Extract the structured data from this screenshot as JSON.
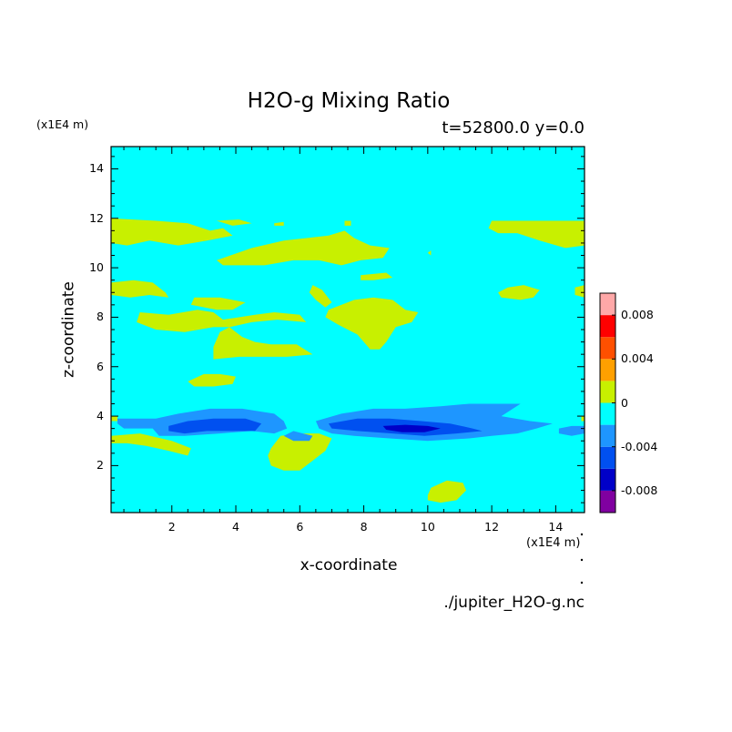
{
  "chart_data": {
    "type": "heatmap",
    "title": "H2O-g Mixing Ratio",
    "subtitle": "t=52800.0 y=0.0",
    "xlabel": "x-coordinate",
    "ylabel": "z-coordinate",
    "x_unit": "(x1E4 m)",
    "z_unit": "(x1E4 m)",
    "xlim": [
      0.1,
      14.9
    ],
    "ylim": [
      0.1,
      14.9
    ],
    "xticks": [
      "2",
      "4",
      "6",
      "8",
      "10",
      "12",
      "14"
    ],
    "xtick_values": [
      2,
      4,
      6,
      8,
      10,
      12,
      14
    ],
    "yticks": [
      "2",
      "4",
      "6",
      "8",
      "10",
      "12",
      "14"
    ],
    "ytick_values": [
      2,
      4,
      6,
      8,
      10,
      12,
      14
    ],
    "background_level_color": "#00ffff",
    "colorbar": {
      "levels": [
        -0.01,
        -0.008,
        -0.006,
        -0.004,
        -0.002,
        0,
        0.002,
        0.004,
        0.006,
        0.008,
        0.01
      ],
      "colors": [
        "#8000a0",
        "#0000c8",
        "#0050f0",
        "#1e96ff",
        "#00ffff",
        "#c8f000",
        "#ffa000",
        "#ff5000",
        "#ff0000",
        "#ffa8a8"
      ],
      "tick_labels": [
        "-0.008",
        "-0.004",
        "0",
        "0.004",
        "0.008"
      ],
      "tick_values": [
        -0.008,
        -0.004,
        0,
        0.004,
        0.008
      ]
    },
    "contours": [
      {
        "level": 0.001,
        "color": "#c8f000",
        "points": [
          [
            0.1,
            12.0
          ],
          [
            1.5,
            11.9
          ],
          [
            2.5,
            11.8
          ],
          [
            3.2,
            11.5
          ],
          [
            3.6,
            11.6
          ],
          [
            3.9,
            11.3
          ],
          [
            3.1,
            11.1
          ],
          [
            2.2,
            10.9
          ],
          [
            1.3,
            11.1
          ],
          [
            0.6,
            10.9
          ],
          [
            0.1,
            11.0
          ]
        ]
      },
      {
        "level": 0.001,
        "color": "#c8f000",
        "points": [
          [
            3.4,
            11.9
          ],
          [
            4.1,
            11.95
          ],
          [
            4.5,
            11.8
          ],
          [
            3.9,
            11.7
          ]
        ]
      },
      {
        "level": 0.001,
        "color": "#c8f000",
        "points": [
          [
            5.2,
            11.8
          ],
          [
            5.5,
            11.85
          ],
          [
            5.5,
            11.7
          ],
          [
            5.2,
            11.7
          ]
        ]
      },
      {
        "level": 0.001,
        "color": "#c8f000",
        "points": [
          [
            7.4,
            11.9
          ],
          [
            7.6,
            11.9
          ],
          [
            7.6,
            11.7
          ],
          [
            7.4,
            11.7
          ]
        ]
      },
      {
        "level": 0.001,
        "color": "#c8f000",
        "points": [
          [
            3.4,
            10.3
          ],
          [
            4.5,
            10.8
          ],
          [
            5.5,
            11.1
          ],
          [
            6.2,
            11.2
          ],
          [
            6.9,
            11.3
          ],
          [
            7.4,
            11.5
          ],
          [
            7.7,
            11.2
          ],
          [
            8.2,
            10.9
          ],
          [
            8.8,
            10.8
          ],
          [
            8.6,
            10.4
          ],
          [
            7.9,
            10.3
          ],
          [
            7.3,
            10.1
          ],
          [
            6.6,
            10.3
          ],
          [
            5.8,
            10.3
          ],
          [
            4.9,
            10.1
          ],
          [
            4.2,
            10.1
          ],
          [
            3.6,
            10.1
          ]
        ]
      },
      {
        "level": 0.001,
        "color": "#c8f000",
        "points": [
          [
            7.9,
            9.7
          ],
          [
            8.7,
            9.8
          ],
          [
            8.9,
            9.6
          ],
          [
            8.3,
            9.5
          ],
          [
            7.9,
            9.5
          ]
        ]
      },
      {
        "level": 0.001,
        "color": "#c8f000",
        "points": [
          [
            12.0,
            11.9
          ],
          [
            12.8,
            11.9
          ],
          [
            13.8,
            11.9
          ],
          [
            14.9,
            11.9
          ],
          [
            14.9,
            10.9
          ],
          [
            14.3,
            10.8
          ],
          [
            13.5,
            11.1
          ],
          [
            12.8,
            11.4
          ],
          [
            12.2,
            11.4
          ],
          [
            11.9,
            11.6
          ]
        ]
      },
      {
        "level": 0.001,
        "color": "#c8f000",
        "points": [
          [
            10.0,
            10.6
          ],
          [
            10.1,
            10.7
          ],
          [
            10.1,
            10.5
          ]
        ]
      },
      {
        "level": 0.001,
        "color": "#c8f000",
        "points": [
          [
            0.1,
            9.4
          ],
          [
            0.8,
            9.5
          ],
          [
            1.4,
            9.4
          ],
          [
            1.8,
            9.0
          ],
          [
            1.9,
            8.8
          ],
          [
            1.3,
            8.9
          ],
          [
            0.7,
            8.8
          ],
          [
            0.1,
            8.9
          ]
        ]
      },
      {
        "level": 0.001,
        "color": "#c8f000",
        "points": [
          [
            12.5,
            9.2
          ],
          [
            13.0,
            9.3
          ],
          [
            13.5,
            9.1
          ],
          [
            13.3,
            8.8
          ],
          [
            12.9,
            8.7
          ],
          [
            12.3,
            8.8
          ],
          [
            12.2,
            9.0
          ]
        ]
      },
      {
        "level": 0.001,
        "color": "#c8f000",
        "points": [
          [
            14.6,
            9.2
          ],
          [
            14.9,
            9.3
          ],
          [
            14.9,
            8.8
          ],
          [
            14.6,
            8.9
          ]
        ]
      },
      {
        "level": 0.001,
        "color": "#c8f000",
        "points": [
          [
            1.0,
            8.2
          ],
          [
            1.9,
            8.1
          ],
          [
            2.8,
            8.3
          ],
          [
            3.3,
            8.2
          ],
          [
            3.6,
            7.9
          ],
          [
            4.6,
            8.1
          ],
          [
            5.2,
            8.2
          ],
          [
            6.0,
            8.1
          ],
          [
            6.2,
            7.8
          ],
          [
            5.3,
            7.9
          ],
          [
            4.5,
            7.8
          ],
          [
            3.8,
            7.6
          ],
          [
            3.3,
            7.6
          ],
          [
            2.4,
            7.4
          ],
          [
            1.5,
            7.5
          ],
          [
            0.9,
            7.8
          ]
        ]
      },
      {
        "level": 0.001,
        "color": "#c8f000",
        "points": [
          [
            2.7,
            8.8
          ],
          [
            3.5,
            8.8
          ],
          [
            4.3,
            8.6
          ],
          [
            3.9,
            8.3
          ],
          [
            3.4,
            8.3
          ],
          [
            2.6,
            8.5
          ]
        ]
      },
      {
        "level": 0.001,
        "color": "#c8f000",
        "points": [
          [
            6.4,
            9.3
          ],
          [
            6.7,
            9.1
          ],
          [
            7.0,
            8.6
          ],
          [
            6.8,
            8.4
          ],
          [
            6.5,
            8.7
          ],
          [
            6.3,
            9.0
          ]
        ]
      },
      {
        "level": 0.001,
        "color": "#c8f000",
        "points": [
          [
            6.9,
            8.3
          ],
          [
            7.7,
            8.7
          ],
          [
            8.3,
            8.8
          ],
          [
            8.9,
            8.7
          ],
          [
            9.3,
            8.3
          ],
          [
            9.7,
            8.2
          ],
          [
            9.5,
            7.8
          ],
          [
            9.0,
            7.6
          ],
          [
            8.7,
            7.0
          ],
          [
            8.5,
            6.7
          ],
          [
            8.2,
            6.7
          ],
          [
            7.8,
            7.3
          ],
          [
            7.2,
            7.7
          ],
          [
            6.8,
            8.0
          ]
        ]
      },
      {
        "level": 0.001,
        "color": "#c8f000",
        "points": [
          [
            3.3,
            6.8
          ],
          [
            3.5,
            7.4
          ],
          [
            3.8,
            7.6
          ],
          [
            4.2,
            7.2
          ],
          [
            4.6,
            7.0
          ],
          [
            5.1,
            6.9
          ],
          [
            5.9,
            6.9
          ],
          [
            6.4,
            6.5
          ],
          [
            5.6,
            6.4
          ],
          [
            4.9,
            6.4
          ],
          [
            4.1,
            6.4
          ],
          [
            3.3,
            6.3
          ]
        ]
      },
      {
        "level": 0.001,
        "color": "#c8f000",
        "points": [
          [
            2.5,
            5.4
          ],
          [
            3.0,
            5.7
          ],
          [
            3.5,
            5.7
          ],
          [
            4.0,
            5.6
          ],
          [
            3.9,
            5.3
          ],
          [
            3.3,
            5.2
          ],
          [
            2.7,
            5.2
          ]
        ]
      },
      {
        "level": 0.001,
        "color": "#c8f000",
        "points": [
          [
            0.1,
            3.2
          ],
          [
            1.0,
            3.3
          ],
          [
            2.0,
            3.0
          ],
          [
            2.6,
            2.7
          ],
          [
            2.5,
            2.4
          ],
          [
            1.9,
            2.6
          ],
          [
            1.2,
            2.8
          ],
          [
            0.6,
            2.9
          ],
          [
            0.1,
            2.9
          ]
        ]
      },
      {
        "level": 0.001,
        "color": "#c8f000",
        "points": [
          [
            5.1,
            2.7
          ],
          [
            5.4,
            3.2
          ],
          [
            6.0,
            3.3
          ],
          [
            6.6,
            3.3
          ],
          [
            7.0,
            3.1
          ],
          [
            6.8,
            2.6
          ],
          [
            6.4,
            2.2
          ],
          [
            6.0,
            1.8
          ],
          [
            5.5,
            1.8
          ],
          [
            5.1,
            2.0
          ],
          [
            5.0,
            2.4
          ]
        ]
      },
      {
        "level": 0.001,
        "color": "#c8f000",
        "points": [
          [
            10.1,
            1.1
          ],
          [
            10.6,
            1.4
          ],
          [
            11.1,
            1.3
          ],
          [
            11.2,
            1.0
          ],
          [
            10.9,
            0.6
          ],
          [
            10.4,
            0.5
          ],
          [
            10.0,
            0.6
          ],
          [
            10.0,
            0.8
          ]
        ]
      },
      {
        "level": 0.001,
        "color": "#c8f000",
        "points": [
          [
            0.1,
            4.0
          ],
          [
            0.3,
            4.0
          ],
          [
            0.3,
            3.8
          ],
          [
            0.1,
            3.8
          ]
        ]
      },
      {
        "level": 0.001,
        "color": "#c8f000",
        "points": [
          [
            14.8,
            4.0
          ],
          [
            14.9,
            4.0
          ],
          [
            14.9,
            3.8
          ],
          [
            14.8,
            3.8
          ]
        ]
      },
      {
        "level": -0.003,
        "color": "#1e96ff",
        "points": [
          [
            0.3,
            3.9
          ],
          [
            1.5,
            3.9
          ],
          [
            2.2,
            4.1
          ],
          [
            3.2,
            4.3
          ],
          [
            4.2,
            4.3
          ],
          [
            5.2,
            4.1
          ],
          [
            5.5,
            3.8
          ],
          [
            5.6,
            3.5
          ],
          [
            5.2,
            3.3
          ],
          [
            4.5,
            3.4
          ],
          [
            3.5,
            3.3
          ],
          [
            2.4,
            3.2
          ],
          [
            1.6,
            3.2
          ],
          [
            1.4,
            3.5
          ],
          [
            0.5,
            3.5
          ],
          [
            0.3,
            3.7
          ]
        ]
      },
      {
        "level": -0.003,
        "color": "#1e96ff",
        "points": [
          [
            5.8,
            3.4
          ],
          [
            6.1,
            3.3
          ],
          [
            6.4,
            3.2
          ],
          [
            6.3,
            3.0
          ],
          [
            5.8,
            3.0
          ],
          [
            5.5,
            3.2
          ]
        ]
      },
      {
        "level": -0.003,
        "color": "#1e96ff",
        "points": [
          [
            6.5,
            3.8
          ],
          [
            7.3,
            4.1
          ],
          [
            8.3,
            4.3
          ],
          [
            9.3,
            4.3
          ],
          [
            10.4,
            4.4
          ],
          [
            11.3,
            4.5
          ],
          [
            12.0,
            4.5
          ],
          [
            12.9,
            4.5
          ],
          [
            12.3,
            4.0
          ],
          [
            13.2,
            3.8
          ],
          [
            13.9,
            3.7
          ],
          [
            13.4,
            3.5
          ],
          [
            12.8,
            3.3
          ],
          [
            12.0,
            3.2
          ],
          [
            11.3,
            3.1
          ],
          [
            10.0,
            3.0
          ],
          [
            8.8,
            3.1
          ],
          [
            7.7,
            3.2
          ],
          [
            7.0,
            3.3
          ],
          [
            6.6,
            3.5
          ]
        ]
      },
      {
        "level": -0.003,
        "color": "#1e96ff",
        "points": [
          [
            14.1,
            3.5
          ],
          [
            14.5,
            3.6
          ],
          [
            14.9,
            3.6
          ],
          [
            14.9,
            3.3
          ],
          [
            14.5,
            3.2
          ],
          [
            14.1,
            3.3
          ]
        ]
      },
      {
        "level": -0.006,
        "color": "#0050f0",
        "points": [
          [
            1.9,
            3.6
          ],
          [
            2.5,
            3.8
          ],
          [
            3.3,
            3.9
          ],
          [
            4.3,
            3.9
          ],
          [
            4.8,
            3.7
          ],
          [
            4.6,
            3.4
          ],
          [
            3.9,
            3.4
          ],
          [
            3.1,
            3.4
          ],
          [
            2.4,
            3.3
          ],
          [
            1.9,
            3.4
          ]
        ]
      },
      {
        "level": -0.006,
        "color": "#0050f0",
        "points": [
          [
            6.9,
            3.7
          ],
          [
            7.8,
            3.9
          ],
          [
            8.8,
            3.9
          ],
          [
            9.8,
            3.8
          ],
          [
            10.7,
            3.7
          ],
          [
            11.4,
            3.5
          ],
          [
            11.7,
            3.4
          ],
          [
            10.9,
            3.3
          ],
          [
            9.9,
            3.2
          ],
          [
            8.9,
            3.3
          ],
          [
            7.8,
            3.4
          ],
          [
            7.0,
            3.5
          ]
        ]
      },
      {
        "level": -0.008,
        "color": "#0000c8",
        "points": [
          [
            8.6,
            3.6
          ],
          [
            9.3,
            3.65
          ],
          [
            10.0,
            3.6
          ],
          [
            10.4,
            3.5
          ],
          [
            9.9,
            3.35
          ],
          [
            9.2,
            3.35
          ],
          [
            8.7,
            3.45
          ]
        ]
      }
    ]
  }
}
